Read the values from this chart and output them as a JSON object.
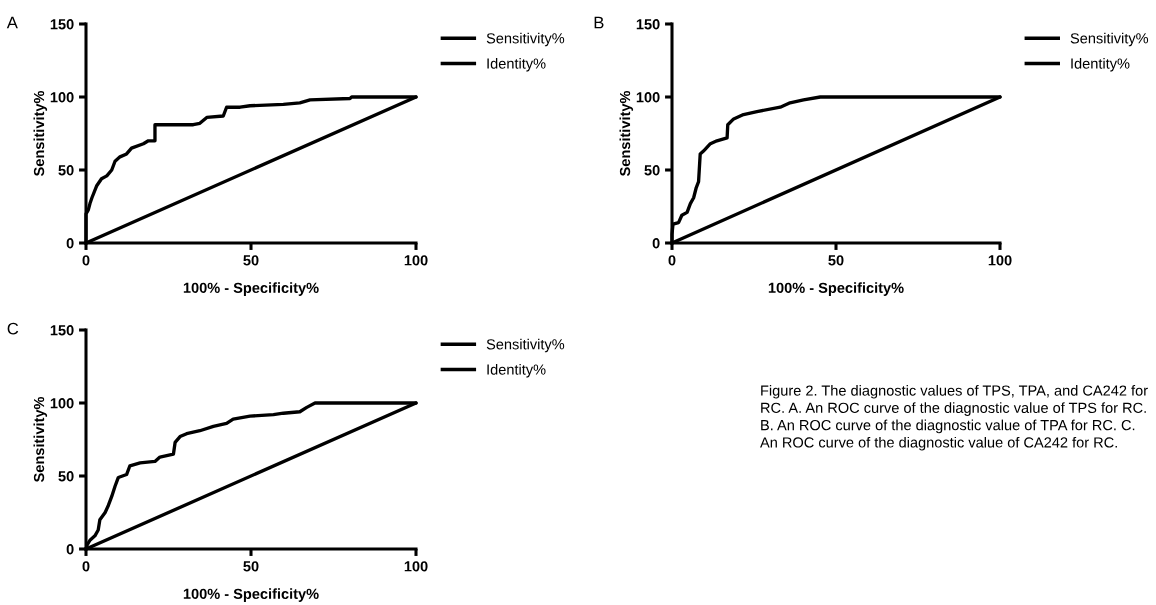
{
  "chart_data": [
    {
      "type": "line",
      "title": "A",
      "xlabel": "100% - Specificity%",
      "ylabel": "Sensitivity%",
      "xlim": [
        0,
        100
      ],
      "ylim": [
        0,
        150
      ],
      "xticks": [
        0,
        50,
        100
      ],
      "yticks": [
        0,
        50,
        100,
        150
      ],
      "legend": "right",
      "grid": false,
      "marker": "none",
      "series": [
        {
          "name": "Sensitivity%",
          "color": "#000000",
          "x": [
            0,
            0,
            0.7,
            1.2,
            1.8,
            3.2,
            4.7,
            6.3,
            7.8,
            8.8,
            10.3,
            12.3,
            13.8,
            17.4,
            18.9,
            20.9,
            20.9,
            32.5,
            34.5,
            36.6,
            41.6,
            42.6,
            46.7,
            49.7,
            59.8,
            64.8,
            67.9,
            80,
            80.5,
            100
          ],
          "values": [
            0,
            20,
            22.7,
            27,
            31,
            39,
            44,
            46,
            50,
            56,
            59,
            61,
            65,
            68,
            70,
            70,
            81,
            81,
            82,
            86,
            87,
            93,
            93,
            94,
            95,
            96,
            98,
            99,
            100,
            100
          ]
        },
        {
          "name": "Identity%",
          "color": "#000000",
          "x": [
            0,
            100
          ],
          "values": [
            0,
            100
          ]
        }
      ]
    },
    {
      "type": "line",
      "title": "B",
      "xlabel": "100% - Specificity%",
      "ylabel": "Sensitivity%",
      "xlim": [
        0,
        100
      ],
      "ylim": [
        0,
        150
      ],
      "xticks": [
        0,
        50,
        100
      ],
      "yticks": [
        0,
        50,
        100,
        150
      ],
      "legend": "right",
      "grid": false,
      "marker": "none",
      "series": [
        {
          "name": "Sensitivity%",
          "color": "#000000",
          "x": [
            0,
            0,
            0.3,
            2,
            3,
            4.6,
            5.6,
            6.6,
            7.4,
            8.1,
            8.6,
            9.6,
            11.7,
            13.7,
            16.8,
            17,
            18.8,
            21.8,
            25.9,
            33,
            36,
            40.1,
            45.2,
            100
          ],
          "values": [
            0,
            6,
            13,
            14,
            19,
            21,
            27,
            31,
            38,
            42,
            61,
            63,
            68,
            70,
            72,
            81,
            85,
            88,
            90,
            93,
            96,
            98,
            100,
            100
          ]
        },
        {
          "name": "Identity%",
          "color": "#000000",
          "x": [
            0,
            100
          ],
          "values": [
            0,
            100
          ]
        }
      ]
    },
    {
      "type": "line",
      "title": "C",
      "xlabel": "100% - Specificity%",
      "ylabel": "Sensitivity%",
      "xlim": [
        0,
        100
      ],
      "ylim": [
        0,
        150
      ],
      "xticks": [
        0,
        50,
        100
      ],
      "yticks": [
        0,
        50,
        100,
        150
      ],
      "legend": "right",
      "grid": false,
      "marker": "none",
      "annotations": [
        "Figure 2. The diagnostic values of TPS, TPA, and CA242 for RC. A. An ROC curve of the diagnostic value of TPS for RC. B. An ROC curve of the diagnostic value of TPA for RC. C. An ROC curve of the diagnostic value of CA242 for RC."
      ],
      "series": [
        {
          "name": "Sensitivity%",
          "color": "#000000",
          "x": [
            0,
            0.4,
            1.2,
            2.7,
            3.7,
            4.2,
            5.8,
            6.8,
            7.8,
            8.8,
            9.8,
            12.3,
            13.3,
            16.4,
            20.9,
            22.4,
            26.5,
            27,
            28.5,
            30.5,
            34.5,
            38.6,
            42.6,
            44.6,
            49.7,
            56.8,
            59.8,
            64.8,
            66.9,
            69.4,
            100
          ],
          "values": [
            0,
            3,
            6,
            9,
            13,
            20,
            25,
            30,
            36,
            43,
            49,
            51,
            57,
            59,
            60,
            63,
            65,
            73,
            77,
            79,
            81,
            84,
            86,
            89,
            91,
            92,
            93,
            94,
            97,
            100,
            100
          ]
        },
        {
          "name": "Identity%",
          "color": "#000000",
          "x": [
            0,
            100
          ],
          "values": [
            0,
            100
          ]
        }
      ]
    }
  ]
}
